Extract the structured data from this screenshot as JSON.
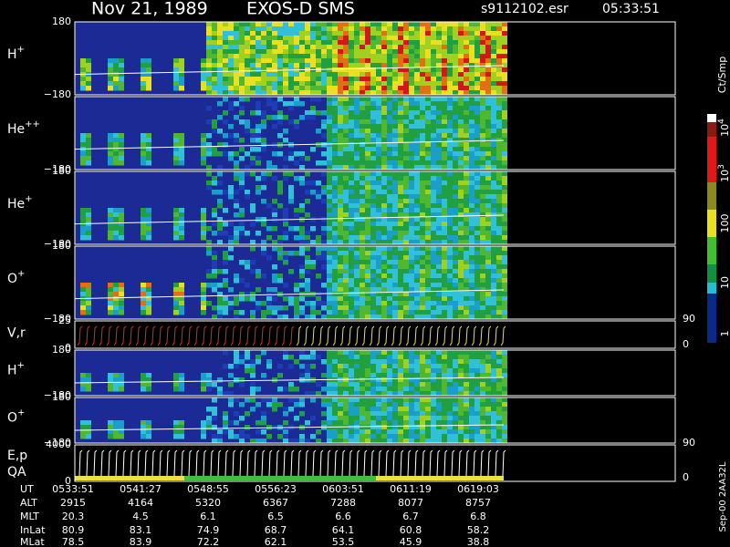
{
  "header": {
    "date": "Nov 21, 1989",
    "title": "EXOS-D SMS",
    "file": "s9112102.esr",
    "time": "05:33:51"
  },
  "panels": [
    {
      "label": "H",
      "sup": "+",
      "ticks": [
        "180",
        "−180"
      ]
    },
    {
      "label": "He",
      "sup": "++",
      "ticks": [
        "−180"
      ]
    },
    {
      "label": "He",
      "sup": "+",
      "ticks": [
        "180",
        "−180"
      ]
    },
    {
      "label": "O",
      "sup": "+",
      "ticks": [
        "180",
        "−180"
      ]
    },
    {
      "label": "V,r",
      "ticks": [
        "25",
        "0"
      ],
      "right_ticks": [
        "90",
        "0"
      ]
    },
    {
      "label": "H",
      "sup": "+",
      "ticks": [
        "180",
        "−180"
      ]
    },
    {
      "label": "O",
      "sup": "+",
      "ticks": [
        "180",
        "−180"
      ]
    },
    {
      "label": "E,p",
      "label2": "QA",
      "ticks": [
        "4000",
        "0"
      ],
      "right_ticks": [
        "90",
        "0"
      ]
    }
  ],
  "colorbar": {
    "title": "Ct/Smp",
    "labels": [
      {
        "base": "10",
        "exp": "4"
      },
      {
        "base": "10",
        "exp": "3"
      },
      {
        "base": "100"
      },
      {
        "base": "10"
      },
      {
        "base": "1"
      }
    ]
  },
  "footer": [
    {
      "label": "UT",
      "values": [
        "0533:51",
        "0541:27",
        "0548:55",
        "0556:23",
        "0603:51",
        "0611:19",
        "0619:03"
      ]
    },
    {
      "label": "ALT",
      "values": [
        "2915",
        "4164",
        "5320",
        "6367",
        "7288",
        "8077",
        "8757"
      ]
    },
    {
      "label": "MLT",
      "values": [
        "20.3",
        "4.5",
        "6.1",
        "6.5",
        "6.6",
        "6.7",
        "6.8"
      ]
    },
    {
      "label": "InLat",
      "values": [
        "80.9",
        "83.1",
        "74.9",
        "68.7",
        "64.1",
        "60.8",
        "58.2"
      ]
    },
    {
      "label": "MLat",
      "values": [
        "78.5",
        "83.9",
        "72.2",
        "62.1",
        "53.5",
        "45.9",
        "38.8"
      ]
    }
  ],
  "stamp": "Sep-00  2AA32L"
}
